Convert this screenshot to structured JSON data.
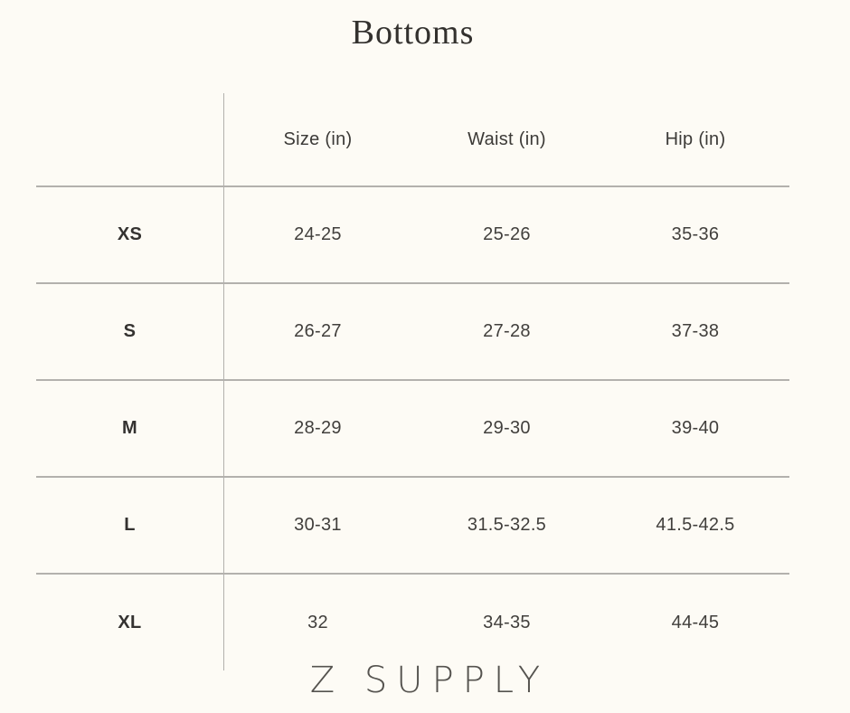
{
  "title": "Bottoms",
  "brand_logo": "Z SUPPLY",
  "colors": {
    "background": "#FDFBF5",
    "rule_line": "#B3B1AD",
    "text": "#3F3D3A"
  },
  "size_chart": {
    "column_headers": [
      "Size (in)",
      "Waist (in)",
      "Hip (in)"
    ],
    "rows": [
      {
        "label": "XS",
        "size": "24-25",
        "waist": "25-26",
        "hip": "35-36"
      },
      {
        "label": "S",
        "size": "26-27",
        "waist": "27-28",
        "hip": "37-38"
      },
      {
        "label": "M",
        "size": "28-29",
        "waist": "29-30",
        "hip": "39-40"
      },
      {
        "label": "L",
        "size": "30-31",
        "waist": "31.5-32.5",
        "hip": "41.5-42.5"
      },
      {
        "label": "XL",
        "size": "32",
        "waist": "34-35",
        "hip": "44-45"
      }
    ]
  }
}
